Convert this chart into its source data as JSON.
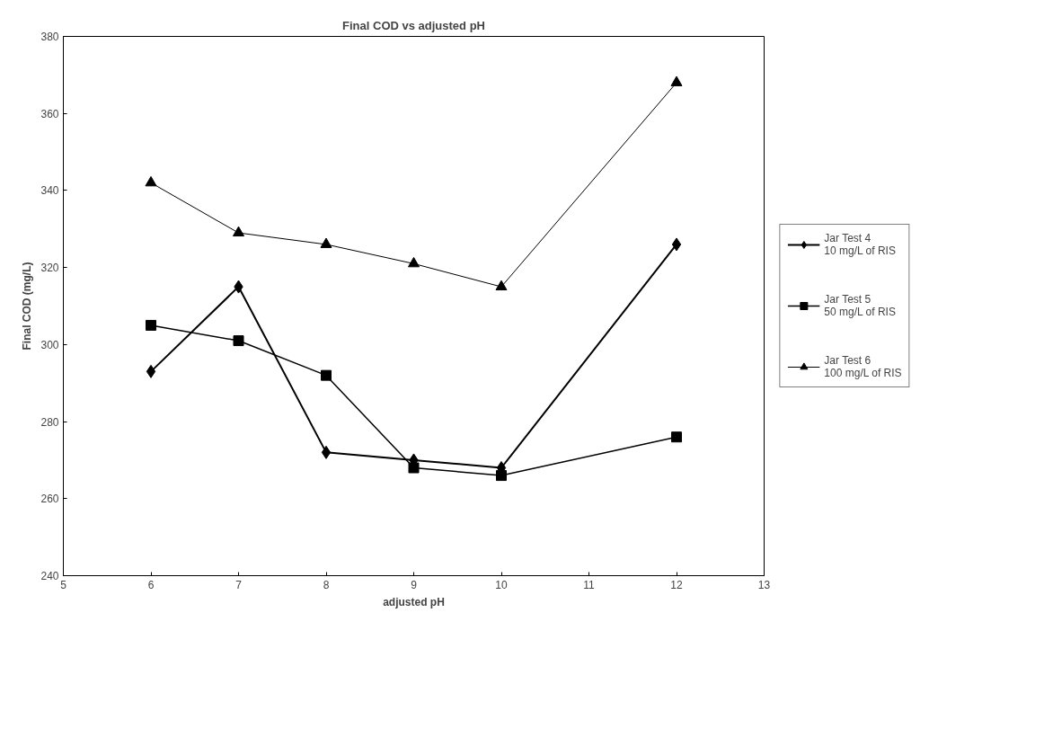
{
  "chart_data": {
    "type": "line",
    "title": "Final COD vs adjusted pH",
    "xlabel": "adjusted pH",
    "ylabel": "Final COD (mg/L)",
    "x": [
      6,
      7,
      8,
      9,
      10,
      12
    ],
    "series": [
      {
        "name": "Jar Test 4\n10 mg/L of RIS",
        "color": "#000000",
        "marker": "diamond",
        "values": [
          293,
          315,
          272,
          270,
          268,
          326
        ]
      },
      {
        "name": "Jar Test 5\n50 mg/L of RIS",
        "color": "#000000",
        "marker": "square",
        "values": [
          305,
          301,
          292,
          268,
          266,
          276
        ]
      },
      {
        "name": "Jar Test 6\n100 mg/L of RIS",
        "color": "#000000",
        "marker": "triangle",
        "values": [
          342,
          329,
          326,
          321,
          315,
          368
        ]
      }
    ],
    "xlim": [
      5,
      13
    ],
    "xticks": [
      5,
      6,
      7,
      8,
      9,
      10,
      11,
      12,
      13
    ],
    "ylim": [
      240,
      380
    ],
    "yticks": [
      240,
      260,
      280,
      300,
      320,
      340,
      360,
      380
    ],
    "grid": false,
    "legend": "right",
    "line_style": "solid"
  }
}
